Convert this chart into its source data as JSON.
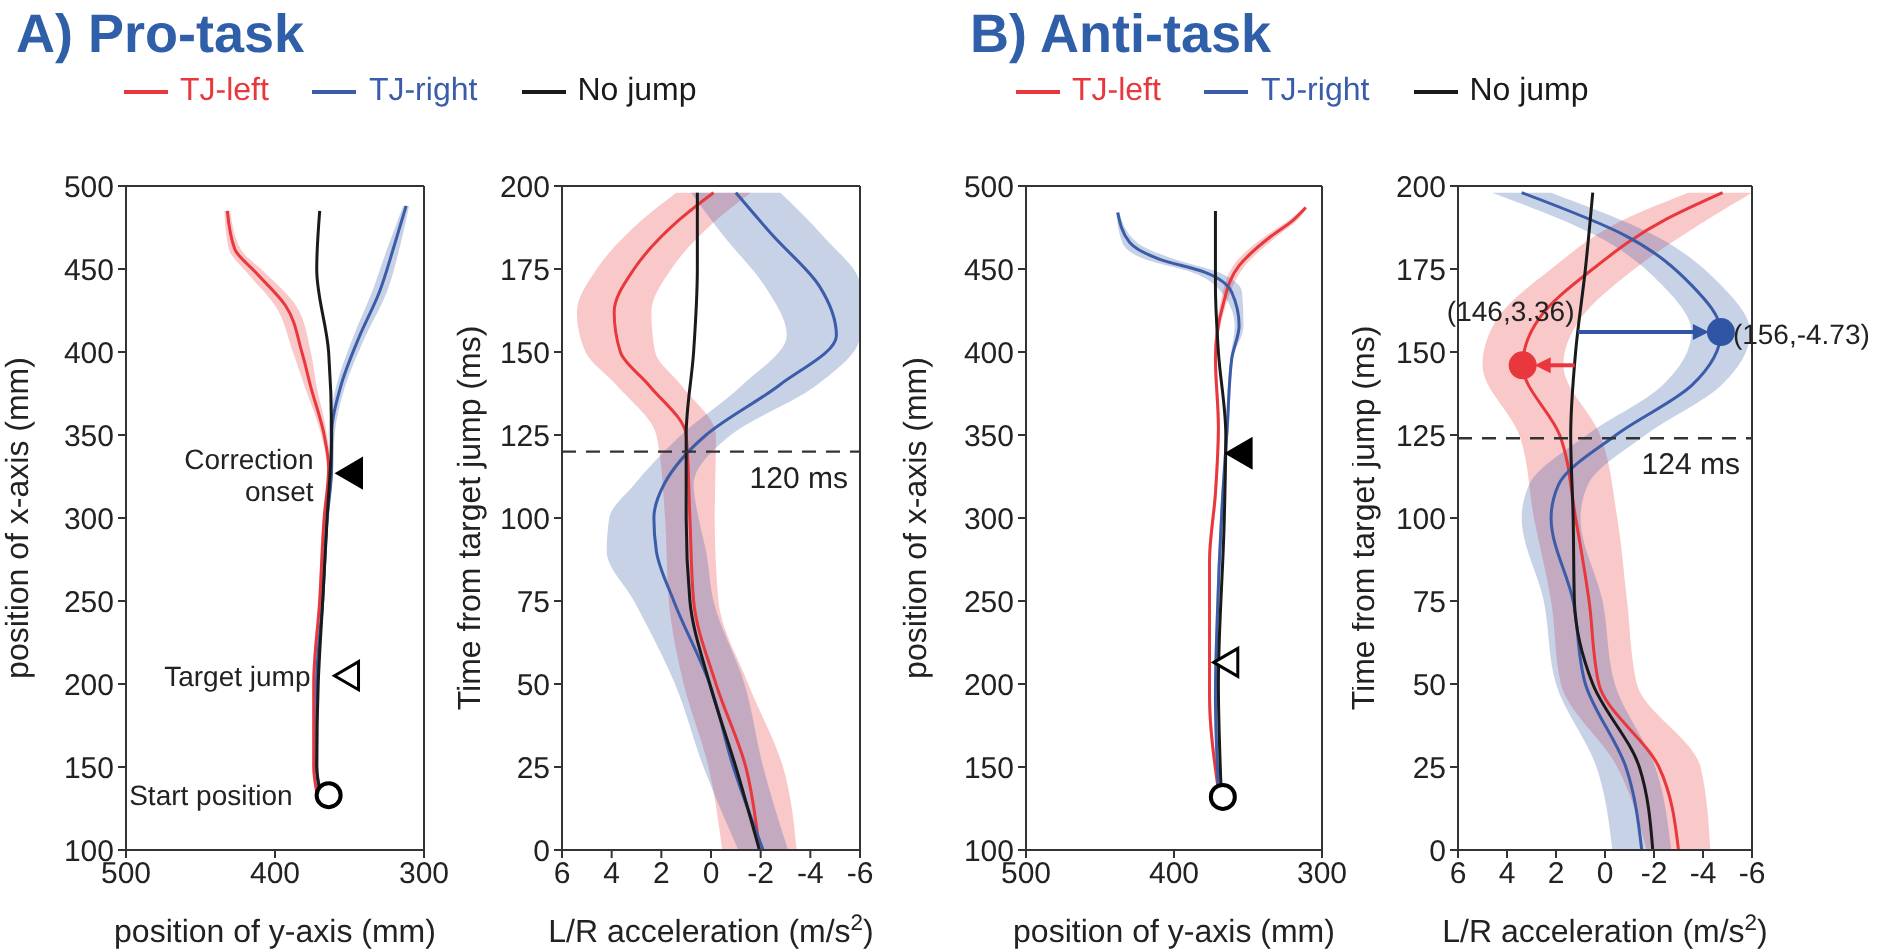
{
  "chart_data": [
    {
      "type": "line",
      "orientation": "horizontal",
      "title": "A) Pro-task",
      "legend": "top",
      "xlabel": "position of y-axis (mm)",
      "ylabel": "position of x-axis (mm)",
      "xlim": [
        500,
        300
      ],
      "xticks": [
        500,
        400,
        300
      ],
      "ylim": [
        100,
        500
      ],
      "yticks": [
        100,
        150,
        200,
        250,
        300,
        350,
        400,
        450,
        500
      ],
      "series": [
        {
          "name": "TJ-left",
          "color": "#e8383d",
          "values": [
            372,
            374,
            374,
            370,
            367,
            364,
            367,
            376,
            382,
            393,
            413,
            427,
            432
          ],
          "x": [
            135,
            150,
            200,
            250,
            300,
            330,
            350,
            379,
            400,
            428,
            448,
            462,
            485
          ],
          "lower": [
            371,
            373,
            373,
            369,
            366,
            363,
            365,
            372,
            376,
            386,
            407,
            423,
            430
          ],
          "upper": [
            373,
            375,
            375,
            371,
            368,
            365,
            369,
            380,
            388,
            400,
            419,
            431,
            434
          ]
        },
        {
          "name": "TJ-right",
          "color": "#3b5ca8",
          "values": [
            370,
            372,
            372,
            368,
            365,
            362,
            362,
            356,
            344,
            330,
            320,
            312
          ],
          "x": [
            135,
            150,
            200,
            250,
            300,
            330,
            350,
            379,
            408,
            436,
            464,
            488
          ],
          "lower": [
            369,
            371,
            371,
            367,
            364,
            361,
            360,
            353,
            340,
            325,
            316,
            310
          ],
          "upper": [
            371,
            373,
            373,
            369,
            366,
            363,
            364,
            359,
            348,
            335,
            324,
            314
          ]
        },
        {
          "name": "No jump",
          "color": "#1a1a1a",
          "values": [
            369,
            372,
            371,
            368,
            365,
            362,
            364,
            372,
            370
          ],
          "x": [
            133,
            150,
            200,
            250,
            300,
            350,
            400,
            450,
            485
          ]
        },
        {
          "type": "scatter",
          "marker": "triangle",
          "color": "#000000",
          "values": [
            350
          ],
          "x": [
            327
          ]
        },
        {
          "type": "scatter",
          "marker": "triangle",
          "color": "#ffffff",
          "values": [
            352
          ],
          "x": [
            205
          ]
        },
        {
          "type": "scatter",
          "marker": "circle",
          "color": "#ffffff",
          "values": [
            364
          ],
          "x": [
            133
          ]
        }
      ],
      "annotations": [
        {
          "text": "Correction\nonset",
          "x": 350,
          "y": 327
        },
        {
          "text": "Target jump",
          "x": 352,
          "y": 205
        },
        {
          "text": "Start position",
          "x": 364,
          "y": 133
        }
      ]
    },
    {
      "type": "line",
      "orientation": "horizontal",
      "xlabel": "L/R acceleration (m/s$^{2}$)",
      "ylabel": "Time from target jump (ms)",
      "xlim": [
        6,
        -6
      ],
      "xticks": [
        6,
        4,
        2,
        0,
        -2,
        -4,
        -6
      ],
      "ylim": [
        0,
        200
      ],
      "yticks": [
        0,
        25,
        50,
        75,
        100,
        125,
        150,
        175,
        200
      ],
      "series": [
        {
          "color": "#e8383d",
          "values": [
            -1.95,
            -1.4,
            -0.2,
            0.7,
            0.85,
            1.0,
            2.5,
            3.65,
            3.9,
            3.1,
            1.25,
            -0.1
          ],
          "x": [
            0,
            25,
            50,
            75,
            100,
            125,
            140,
            150,
            162,
            175,
            190,
            198
          ],
          "lower": [
            -3.45,
            -2.9,
            -1.5,
            -0.3,
            -0.15,
            -0.2,
            1.2,
            2.25,
            2.4,
            1.6,
            -0.25,
            -1.6
          ],
          "upper": [
            -0.45,
            0.1,
            1.1,
            1.7,
            1.85,
            2.2,
            3.8,
            5.05,
            5.4,
            4.6,
            2.75,
            1.4
          ]
        },
        {
          "color": "#3b5ca8",
          "values": [
            -2.1,
            -0.9,
            0.05,
            1.5,
            2.2,
            2.3,
            1.9,
            0.2,
            -2.75,
            -5.05,
            -4.35,
            -2.5,
            -1.0
          ],
          "x": [
            0,
            25,
            50,
            75,
            90,
            100,
            110,
            125,
            140,
            155,
            170,
            185,
            198
          ],
          "lower": [
            -3.1,
            -2.1,
            -1.35,
            -0.1,
            0.2,
            0.5,
            0.7,
            -0.8,
            -4.25,
            -6,
            -6,
            -4.5,
            -2.8
          ],
          "upper": [
            -1.1,
            0.3,
            1.45,
            3.1,
            4.2,
            4.1,
            3.1,
            1.2,
            -1.25,
            -3.05,
            -2.15,
            -0.5,
            0.8
          ]
        },
        {
          "color": "#1a1a1a",
          "values": [
            -1.95,
            -1.0,
            0.05,
            0.85,
            1.0,
            1.0,
            0.7,
            0.55,
            0.55
          ],
          "x": [
            0,
            25,
            50,
            75,
            100,
            125,
            150,
            175,
            198
          ]
        }
      ],
      "ref_lines": [
        {
          "axis": "y",
          "value": 120,
          "label": "120 ms",
          "line_style": "dashed",
          "color": "#333333"
        }
      ]
    },
    {
      "type": "line",
      "orientation": "horizontal",
      "title": "B) Anti-task",
      "legend": "top",
      "xlabel": "position of y-axis (mm)",
      "ylabel": "position of x-axis (mm)",
      "xlim": [
        500,
        300
      ],
      "xticks": [
        500,
        400,
        300
      ],
      "ylim": [
        100,
        500
      ],
      "yticks": [
        100,
        150,
        200,
        250,
        300,
        350,
        400,
        450,
        500
      ],
      "series": [
        {
          "name": "TJ-left",
          "color": "#e8383d",
          "values": [
            370,
            376,
            376,
            372,
            370,
            372,
            367,
            356,
            334,
            320,
            311
          ],
          "x": [
            136,
            193,
            274,
            315,
            355,
            396,
            428,
            452,
            470,
            479,
            487
          ],
          "lower": [
            369,
            375,
            375,
            371,
            369,
            371,
            365,
            352,
            330,
            317,
            310
          ],
          "upper": [
            371,
            377,
            377,
            373,
            371,
            373,
            369,
            360,
            338,
            323,
            312
          ]
        },
        {
          "name": "TJ-right",
          "color": "#3b5ca8",
          "values": [
            370,
            372,
            371,
            367,
            364,
            361,
            356,
            361,
            379,
            410,
            430,
            438
          ],
          "x": [
            136,
            193,
            234,
            315,
            355,
            396,
            416,
            436,
            448,
            456,
            466,
            484
          ],
          "lower": [
            369,
            371,
            370,
            366,
            363,
            360,
            353,
            354,
            370,
            400,
            425,
            437
          ],
          "upper": [
            371,
            373,
            372,
            368,
            365,
            362,
            359,
            368,
            388,
            420,
            435,
            439
          ]
        },
        {
          "name": "No jump",
          "color": "#1a1a1a",
          "values": [
            368,
            370,
            366,
            365,
            370,
            372,
            372
          ],
          "x": [
            133,
            200,
            300,
            350,
            400,
            440,
            485
          ]
        },
        {
          "type": "scatter",
          "marker": "triangle",
          "color": "#000000",
          "values": [
            356
          ],
          "x": [
            339
          ]
        },
        {
          "type": "scatter",
          "marker": "triangle",
          "color": "#ffffff",
          "values": [
            365
          ],
          "x": [
            213
          ]
        },
        {
          "type": "scatter",
          "marker": "circle",
          "color": "#ffffff",
          "values": [
            367
          ],
          "x": [
            132
          ]
        }
      ]
    },
    {
      "type": "line",
      "orientation": "horizontal",
      "xlabel": "L/R acceleration (m/s$^{2}$)",
      "ylabel": "Time from target jump (ms)",
      "xlim": [
        6,
        -6
      ],
      "xticks": [
        6,
        4,
        2,
        0,
        -2,
        -4,
        -6
      ],
      "ylim": [
        0,
        200
      ],
      "yticks": [
        0,
        25,
        50,
        75,
        100,
        125,
        150,
        175,
        200
      ],
      "series": [
        {
          "color": "#e8383d",
          "values": [
            -3.0,
            -2.2,
            0.25,
            0.65,
            1.2,
            1.85,
            3.36,
            2.7,
            0.5,
            -2.5,
            -4.8
          ],
          "x": [
            0,
            25,
            50,
            75,
            100,
            125,
            146,
            160,
            175,
            190,
            198
          ],
          "lower": [
            -4.3,
            -3.9,
            -1.3,
            -0.9,
            -0.5,
            0.2,
            1.7,
            1.0,
            -1.2,
            -4.2,
            -6
          ],
          "upper": [
            -1.7,
            -0.5,
            1.8,
            2.2,
            2.9,
            3.5,
            5.0,
            4.4,
            2.2,
            -0.8,
            -3.4
          ]
        },
        {
          "color": "#3b5ca8",
          "values": [
            -1.5,
            -0.85,
            0.8,
            1.3,
            2.2,
            1.9,
            -0.45,
            -3.55,
            -4.73,
            -3.55,
            -0.85,
            3.4
          ],
          "x": [
            0,
            25,
            50,
            75,
            100,
            110,
            125,
            140,
            156,
            170,
            185,
            198
          ],
          "lower": [
            -2.7,
            -2.05,
            -0.4,
            0.1,
            1.0,
            0.7,
            -1.65,
            -4.75,
            -5.93,
            -4.75,
            -2.05,
            2.2
          ],
          "upper": [
            -0.3,
            0.35,
            2.0,
            2.5,
            3.4,
            3.1,
            0.75,
            -2.35,
            -3.53,
            -2.35,
            0.35,
            4.6
          ]
        },
        {
          "color": "#1a1a1a",
          "values": [
            -1.95,
            -1.4,
            0.5,
            1.25,
            1.3,
            1.4,
            1.2,
            0.8,
            0.5
          ],
          "x": [
            0,
            25,
            50,
            75,
            100,
            125,
            150,
            175,
            198
          ]
        },
        {
          "type": "scatter",
          "marker": "circle",
          "color": "#e8383d",
          "values": [
            3.36
          ],
          "x": [
            146
          ]
        },
        {
          "type": "scatter",
          "marker": "circle",
          "color": "#2f55a4",
          "values": [
            -4.73
          ],
          "x": [
            156
          ]
        }
      ],
      "ref_lines": [
        {
          "axis": "y",
          "value": 124,
          "label": "124 ms",
          "line_style": "dashed",
          "color": "#333333"
        }
      ],
      "annotations": [
        {
          "text": "(146,3.36)",
          "x": 3.36,
          "y": 146
        },
        {
          "text": "(156,-4.73)",
          "x": -4.73,
          "y": 156
        }
      ]
    }
  ]
}
